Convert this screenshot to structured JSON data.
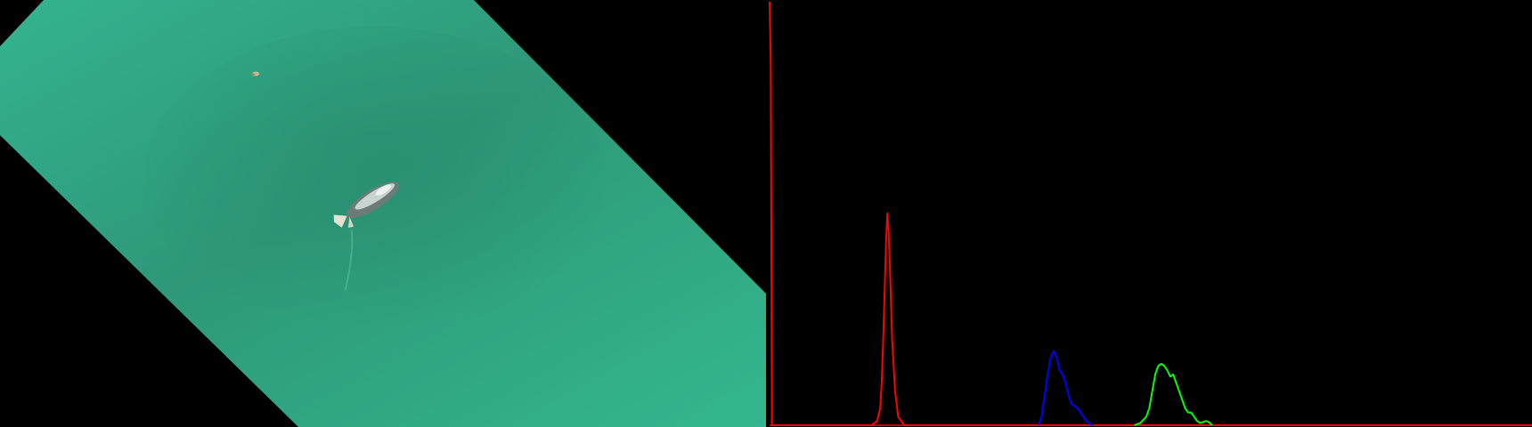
{
  "photo": {
    "subject_icon": "whale-icon",
    "secondary_icon": "bird-icon",
    "water_color": "#2f9d7e",
    "water_color_light": "#34b58f",
    "background_color": "#000000"
  },
  "chart_data": {
    "type": "line",
    "title": "",
    "xlabel": "",
    "ylabel": "",
    "xlim": [
      0,
      255
    ],
    "ylim": [
      0,
      1
    ],
    "grid": false,
    "legend": "none",
    "background_color": "#000000",
    "series": [
      {
        "color": "#ff0000",
        "points": [
          [
            0,
            1.0
          ],
          [
            0.4,
            0.86
          ],
          [
            0.8,
            0.0
          ],
          [
            25,
            0.0
          ],
          [
            34,
            0.0
          ],
          [
            36,
            0.01
          ],
          [
            37,
            0.04
          ],
          [
            37.5,
            0.1
          ],
          [
            38,
            0.2
          ],
          [
            38.5,
            0.32
          ],
          [
            39,
            0.44
          ],
          [
            39.4,
            0.5
          ],
          [
            39.8,
            0.46
          ],
          [
            40.3,
            0.36
          ],
          [
            41,
            0.2
          ],
          [
            42,
            0.08
          ],
          [
            43,
            0.02
          ],
          [
            45,
            0.0
          ],
          [
            255,
            0.0
          ]
        ]
      },
      {
        "color": "#0000ff",
        "points": [
          [
            90,
            0.0
          ],
          [
            91,
            0.02
          ],
          [
            92,
            0.07
          ],
          [
            93,
            0.12
          ],
          [
            94,
            0.16
          ],
          [
            95,
            0.175
          ],
          [
            96,
            0.16
          ],
          [
            97,
            0.13
          ],
          [
            98,
            0.12
          ],
          [
            99,
            0.1
          ],
          [
            100,
            0.07
          ],
          [
            101,
            0.05
          ],
          [
            102,
            0.045
          ],
          [
            103,
            0.04
          ],
          [
            104,
            0.03
          ],
          [
            105,
            0.02
          ],
          [
            106,
            0.01
          ],
          [
            107,
            0.004
          ],
          [
            108,
            0.0
          ]
        ]
      },
      {
        "color": "#00ff00",
        "points": [
          [
            122,
            0.0
          ],
          [
            124,
            0.005
          ],
          [
            126,
            0.02
          ],
          [
            127,
            0.04
          ],
          [
            128,
            0.08
          ],
          [
            129,
            0.12
          ],
          [
            130,
            0.14
          ],
          [
            131,
            0.145
          ],
          [
            132,
            0.14
          ],
          [
            133,
            0.13
          ],
          [
            134,
            0.115
          ],
          [
            135,
            0.12
          ],
          [
            136,
            0.1
          ],
          [
            137,
            0.08
          ],
          [
            138,
            0.06
          ],
          [
            139,
            0.04
          ],
          [
            140,
            0.03
          ],
          [
            141,
            0.03
          ],
          [
            142,
            0.02
          ],
          [
            143,
            0.01
          ],
          [
            144,
            0.005
          ],
          [
            146,
            0.01
          ],
          [
            147,
            0.007
          ],
          [
            148,
            0.0
          ]
        ]
      }
    ]
  }
}
